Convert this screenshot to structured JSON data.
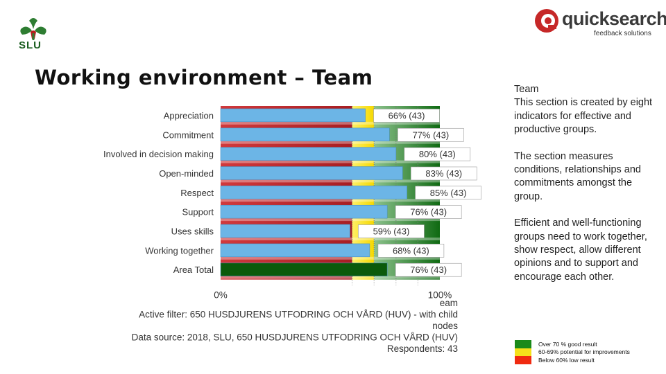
{
  "header": {
    "slu_logo_text": "SLU",
    "brand_name": "quicksearch",
    "brand_tagline": "feedback solutions",
    "title": "Working environment – Team"
  },
  "chart_data": {
    "type": "bar",
    "orientation": "horizontal",
    "categories": [
      "Appreciation",
      "Commitment",
      "Involved in decision making",
      "Open-minded",
      "Respect",
      "Support",
      "Uses skills",
      "Working together",
      "Area Total"
    ],
    "values": [
      66,
      77,
      80,
      83,
      85,
      76,
      59,
      68,
      76
    ],
    "value_labels": [
      "66% (43)",
      "77% (43)",
      "80% (43)",
      "83% (43)",
      "85% (43)",
      "76% (43)",
      "59% (43)",
      "68% (43)",
      "76% (43)"
    ],
    "xlim": [
      0,
      100
    ],
    "tick_labels": [
      "0%",
      "100%"
    ],
    "background_bands": [
      {
        "from": 0,
        "to": 60,
        "color": "#c0292e"
      },
      {
        "from": 60,
        "to": 70,
        "color": "#f2e12a"
      },
      {
        "from": 70,
        "to": 100,
        "color": "#1e7a1e"
      }
    ],
    "bar_color": "#6cb5e6",
    "total_bar_color": "#0b5a0b",
    "footer_lines": [
      "eam",
      "Active filter: 650 HUSDJURENS UTFODRING OCH VÅRD (HUV) - with child",
      "nodes",
      "Data source: 2018, SLU, 650 HUSDJURENS UTFODRING OCH VÅRD (HUV)",
      "Respondents: 43"
    ]
  },
  "right_panel": {
    "heading": "Team",
    "paragraph1": "This section is created by eight indicators for effective and productive groups.",
    "paragraph2": "The section measures conditions, relationships and commitments amongst the group.",
    "paragraph3": "Efficient and well-functioning groups need to work together, show respect, allow different opinions and to support and encourage each other."
  },
  "legend": [
    {
      "label": "Over 70 % good result",
      "color": "#1a8a1a"
    },
    {
      "label": "60-69% potential for improvements",
      "color": "#f5e01a"
    },
    {
      "label": "Below 60% low result",
      "color": "#f02a10"
    }
  ]
}
